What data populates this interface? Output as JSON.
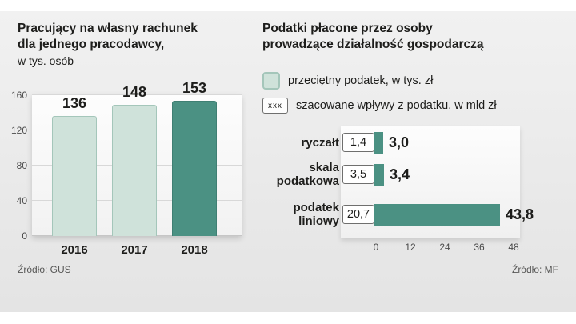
{
  "colors": {
    "mint": "#cfe2da",
    "mint_border": "#a4c6ba",
    "teal": "#4b9183",
    "background_gray": "#e9e9e9",
    "text_dark": "#1d1d1b",
    "text_muted": "#575756"
  },
  "left_chart": {
    "title_line1": "Pracujący na własny rachunek",
    "title_line2": "dla jednego pracodawcy,",
    "subtitle": "w tys. osób",
    "y_ticks": [
      "160",
      "120",
      "80",
      "40",
      "0"
    ],
    "bars": [
      {
        "year": "2016",
        "value": "136"
      },
      {
        "year": "2017",
        "value": "148"
      },
      {
        "year": "2018",
        "value": "153"
      }
    ],
    "source": "Źródło: GUS"
  },
  "right_chart": {
    "title_line1": "Podatki płacone przez osoby",
    "title_line2": "prowadzące działalność gospodarczą",
    "legend": [
      {
        "swatch": "mint-square",
        "label": "przeciętny podatek, w tys. zł"
      },
      {
        "swatch_text": "xxx",
        "label": "szacowane wpływy z podatku, w mld zł"
      }
    ],
    "rows": [
      {
        "label": "ryczałt",
        "box": "1,4",
        "value": "3,0"
      },
      {
        "label": "skala podatkowa",
        "box": "3,5",
        "value": "3,4"
      },
      {
        "label": "podatek liniowy",
        "box": "20,7",
        "value": "43,8"
      }
    ],
    "x_ticks": [
      "0",
      "12",
      "24",
      "36",
      "48"
    ],
    "source": "Źródło: MF"
  },
  "chart_data": [
    {
      "type": "bar",
      "title": "Pracujący na własny rachunek dla jednego pracodawcy, w tys. osób",
      "categories": [
        "2016",
        "2017",
        "2018"
      ],
      "values": [
        136,
        148,
        153
      ],
      "ylabel": "tys. osób",
      "ylim": [
        0,
        160
      ],
      "yticks": [
        0,
        40,
        80,
        120,
        160
      ],
      "grid": true,
      "source": "Źródło: GUS"
    },
    {
      "type": "bar",
      "orientation": "horizontal",
      "title": "Podatki płacone przez osoby prowadzące działalność gospodarczą",
      "categories": [
        "ryczałt",
        "skala podatkowa",
        "podatek liniowy"
      ],
      "series": [
        {
          "name": "przeciętny podatek, w tys. zł",
          "values": [
            1.4,
            3.5,
            20.7
          ]
        },
        {
          "name": "szacowane wpływy z podatku, w mld zł",
          "values": [
            3.0,
            3.4,
            43.8
          ]
        }
      ],
      "xlim": [
        0,
        48
      ],
      "xticks": [
        0,
        12,
        24,
        36,
        48
      ],
      "legend_position": "top",
      "source": "Źródło: MF"
    }
  ]
}
